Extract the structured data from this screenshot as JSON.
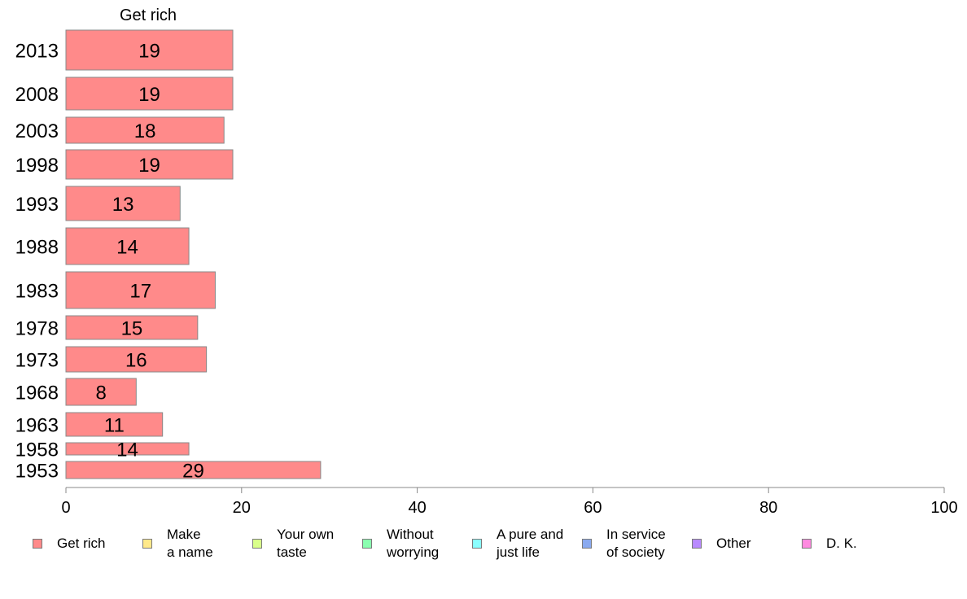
{
  "chart_data": {
    "type": "bar",
    "orientation": "horizontal",
    "title": "Get rich",
    "categories": [
      "2013",
      "2008",
      "2003",
      "1998",
      "1993",
      "1988",
      "1983",
      "1978",
      "1973",
      "1968",
      "1963",
      "1958",
      "1953"
    ],
    "values": [
      19,
      19,
      18,
      19,
      13,
      14,
      17,
      15,
      16,
      8,
      11,
      14,
      29
    ],
    "data_labels": [
      "19",
      "19",
      "18",
      "19",
      "13",
      "14",
      "17",
      "15",
      "16",
      "8",
      "11",
      "14",
      "29"
    ],
    "xlim": [
      0,
      100
    ],
    "xticks": [
      "0",
      "20",
      "40",
      "60",
      "80",
      "100"
    ],
    "grid": false,
    "legend_placement": "bottom",
    "legend": [
      {
        "label": "Get rich",
        "color": "#ff8a8a"
      },
      {
        "label": "Make\na name",
        "color": "#ffe98a"
      },
      {
        "label": "Your own\ntaste",
        "color": "#d9ff8a"
      },
      {
        "label": "Without\nworrying",
        "color": "#8affb0"
      },
      {
        "label": "A pure and\njust life",
        "color": "#8affff"
      },
      {
        "label": "In service\nof society",
        "color": "#8aaaf0"
      },
      {
        "label": "Other",
        "color": "#b98aff"
      },
      {
        "label": "D. K.",
        "color": "#ff8ae0"
      }
    ],
    "bar_color": "#ff8a8a"
  }
}
